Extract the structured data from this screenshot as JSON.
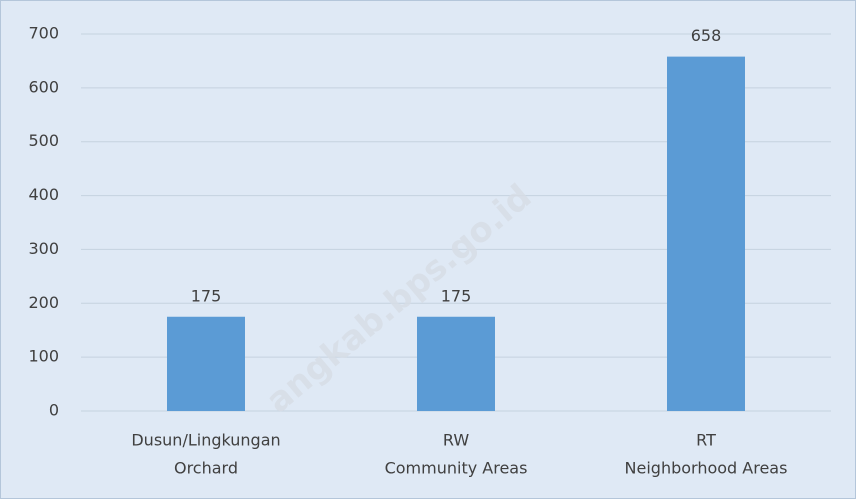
{
  "chart_data": {
    "type": "bar",
    "categories": [
      [
        "Dusun/Lingkungan",
        "Orchard"
      ],
      [
        "RW",
        "Community Areas"
      ],
      [
        "RT",
        "Neighborhood Areas"
      ]
    ],
    "values": [
      175,
      175,
      658
    ],
    "color": "#5b9bd5",
    "ylim": [
      0,
      700
    ],
    "yticks": [
      0,
      100,
      200,
      300,
      400,
      500,
      600,
      700
    ],
    "grid": true,
    "watermark": "angkab.bps.go.id"
  }
}
